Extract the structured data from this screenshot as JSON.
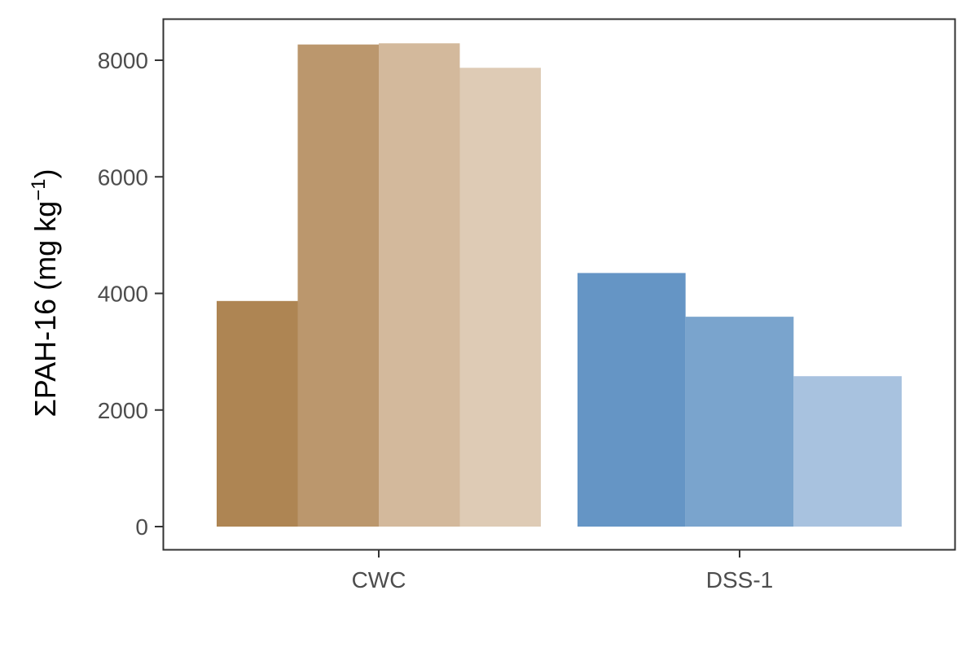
{
  "chart_data": {
    "type": "bar",
    "title": "",
    "xlabel": "",
    "ylabel": {
      "main": "ΣPAH-16 (mg kg",
      "superscript": "−1",
      "close": ")"
    },
    "categories": [
      "CWC",
      "DSS-1"
    ],
    "groups": [
      {
        "category": "CWC",
        "bars": [
          {
            "value": 3870,
            "color": "#ae8553"
          },
          {
            "value": 8270,
            "color": "#bb976d"
          },
          {
            "value": 8290,
            "color": "#d3b99c"
          },
          {
            "value": 7870,
            "color": "#decbb5"
          }
        ]
      },
      {
        "category": "DSS-1",
        "bars": [
          {
            "value": 4350,
            "color": "#6595c5"
          },
          {
            "value": 3600,
            "color": "#7aa4cd"
          },
          {
            "value": 2580,
            "color": "#a8c2df"
          }
        ]
      }
    ],
    "yticks": [
      0,
      2000,
      4000,
      6000,
      8000
    ],
    "ylim": [
      -400,
      8700
    ],
    "grid": false,
    "legend": "none"
  }
}
